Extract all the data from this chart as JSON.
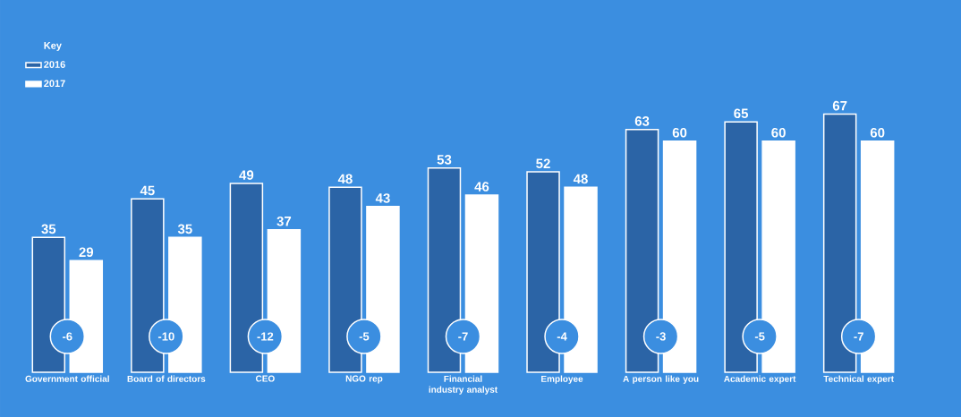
{
  "chart_data": {
    "type": "bar",
    "categories": [
      "Government official",
      "Board of directors",
      "CEO",
      "NGO rep",
      "Financial industry analyst",
      "Employee",
      "A person like you",
      "Academic expert",
      "Technical expert"
    ],
    "series": [
      {
        "name": "2016",
        "color": "#2b64a6",
        "values": [
          35,
          45,
          49,
          48,
          53,
          52,
          63,
          65,
          67
        ]
      },
      {
        "name": "2017",
        "color": "#ffffff",
        "values": [
          29,
          35,
          37,
          43,
          46,
          48,
          60,
          60,
          60
        ]
      }
    ],
    "legend_title": "Key",
    "legend": "top left",
    "data_labels": true,
    "annotations": [
      {
        "text": "-6",
        "x": "Government official"
      },
      {
        "text": "-10",
        "x": "Board of directors"
      },
      {
        "text": "-12",
        "x": "CEO"
      },
      {
        "text": "-5",
        "x": "NGO rep"
      },
      {
        "text": "-7",
        "x": "Financial industry analyst"
      },
      {
        "text": "-4",
        "x": "Employee"
      },
      {
        "text": "-3",
        "x": "A person like you"
      },
      {
        "text": "-5",
        "x": "Academic expert"
      },
      {
        "text": "-7",
        "x": "Technical expert"
      }
    ]
  }
}
